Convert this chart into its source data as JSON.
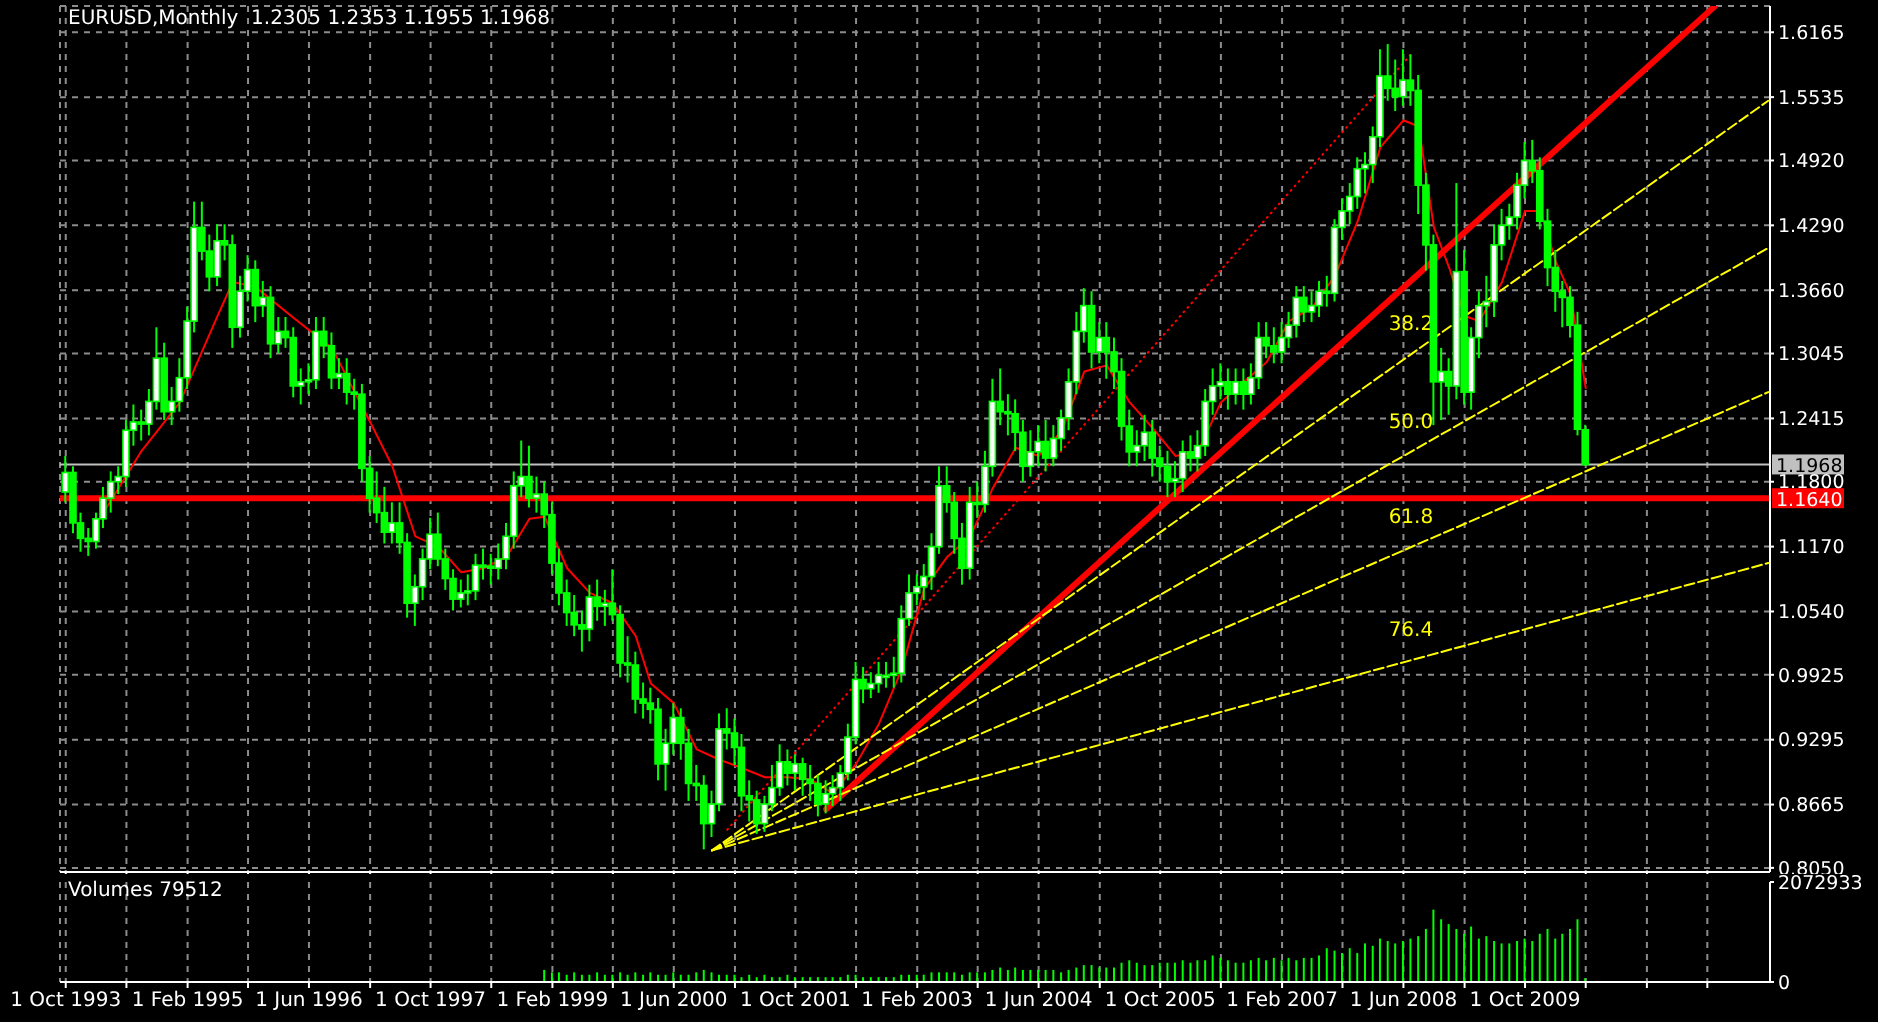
{
  "chart_data": [
    {
      "type": "candlestick",
      "title": "EURUSD,Monthly  1.2305 1.2353 1.1955 1.1968",
      "color": "#00ff00",
      "grid": true,
      "tick_labels": "y",
      "xlim": [
        "1993-09-08",
        "2012-06-08"
      ],
      "xticks": [
        {
          "value": "1993-10-01",
          "label": null
        },
        {
          "value": "1994-06-01",
          "label": null
        },
        {
          "value": "1995-02-01",
          "label": null
        },
        {
          "value": "1995-10-01",
          "label": null
        },
        {
          "value": "1996-06-01",
          "label": null
        },
        {
          "value": "1997-02-01",
          "label": null
        },
        {
          "value": "1997-10-01",
          "label": null
        },
        {
          "value": "1998-06-01",
          "label": null
        },
        {
          "value": "1999-02-01",
          "label": null
        },
        {
          "value": "1999-10-01",
          "label": null
        },
        {
          "value": "2000-06-01",
          "label": null
        },
        {
          "value": "2001-02-01",
          "label": null
        },
        {
          "value": "2001-10-01",
          "label": null
        },
        {
          "value": "2002-06-01",
          "label": null
        },
        {
          "value": "2003-02-01",
          "label": null
        },
        {
          "value": "2003-10-01",
          "label": null
        },
        {
          "value": "2004-06-01",
          "label": null
        },
        {
          "value": "2005-02-01",
          "label": null
        },
        {
          "value": "2005-10-01",
          "label": null
        },
        {
          "value": "2006-06-01",
          "label": null
        },
        {
          "value": "2007-02-01",
          "label": null
        },
        {
          "value": "2007-10-01",
          "label": null
        },
        {
          "value": "2008-06-01",
          "label": null
        },
        {
          "value": "2009-02-01",
          "label": null
        },
        {
          "value": "2009-10-01",
          "label": null
        },
        {
          "value": "2010-06-01",
          "label": null
        },
        {
          "value": "2011-02-01",
          "label": null
        },
        {
          "value": "2011-10-01",
          "label": null
        }
      ],
      "ylim": [
        0.801,
        1.642
      ],
      "yticks": [
        {
          "value": 0.805,
          "label": "0.8050"
        },
        0.8665,
        0.9295,
        0.9925,
        {
          "value": 1.054,
          "label": "1.0540"
        },
        {
          "value": 1.117,
          "label": "1.1170"
        },
        {
          "value": 1.18,
          "label": "1.1800"
        },
        1.2415,
        1.3045,
        {
          "value": 1.366,
          "label": "1.3660"
        },
        {
          "value": 1.429,
          "label": "1.4290"
        },
        {
          "value": 1.492,
          "label": "1.4920"
        },
        1.5535,
        1.6165
      ],
      "x": [
        "1993-10",
        "1993-11",
        "1993-12",
        "1994-01",
        "1994-02",
        "1994-03",
        "1994-04",
        "1994-05",
        "1994-06",
        "1994-07",
        "1994-08",
        "1994-09",
        "1994-10",
        "1994-11",
        "1994-12",
        "1995-01",
        "1995-02",
        "1995-03",
        "1995-04",
        "1995-05",
        "1995-06",
        "1995-07",
        "1995-08",
        "1995-09",
        "1995-10",
        "1995-11",
        "1995-12",
        "1996-01",
        "1996-02",
        "1996-03",
        "1996-04",
        "1996-05",
        "1996-06",
        "1996-07",
        "1996-08",
        "1996-09",
        "1996-10",
        "1996-11",
        "1996-12",
        "1997-01",
        "1997-02",
        "1997-03",
        "1997-04",
        "1997-05",
        "1997-06",
        "1997-07",
        "1997-08",
        "1997-09",
        "1997-10",
        "1997-11",
        "1997-12",
        "1998-01",
        "1998-02",
        "1998-03",
        "1998-04",
        "1998-05",
        "1998-06",
        "1998-07",
        "1998-08",
        "1998-09",
        "1998-10",
        "1998-11",
        "1998-12",
        "1999-01",
        "1999-02",
        "1999-03",
        "1999-04",
        "1999-05",
        "1999-06",
        "1999-07",
        "1999-08",
        "1999-09",
        "1999-10",
        "1999-11",
        "1999-12",
        "2000-01",
        "2000-02",
        "2000-03",
        "2000-04",
        "2000-05",
        "2000-06",
        "2000-07",
        "2000-08",
        "2000-09",
        "2000-10",
        "2000-11",
        "2000-12",
        "2001-01",
        "2001-02",
        "2001-03",
        "2001-04",
        "2001-05",
        "2001-06",
        "2001-07",
        "2001-08",
        "2001-09",
        "2001-10",
        "2001-11",
        "2001-12",
        "2002-01",
        "2002-02",
        "2002-03",
        "2002-04",
        "2002-05",
        "2002-06",
        "2002-07",
        "2002-08",
        "2002-09",
        "2002-10",
        "2002-11",
        "2002-12",
        "2003-01",
        "2003-02",
        "2003-03",
        "2003-04",
        "2003-05",
        "2003-06",
        "2003-07",
        "2003-08",
        "2003-09",
        "2003-10",
        "2003-11",
        "2003-12",
        "2004-01",
        "2004-02",
        "2004-03",
        "2004-04",
        "2004-05",
        "2004-06",
        "2004-07",
        "2004-08",
        "2004-09",
        "2004-10",
        "2004-11",
        "2004-12",
        "2005-01",
        "2005-02",
        "2005-03",
        "2005-04",
        "2005-05",
        "2005-06",
        "2005-07",
        "2005-08",
        "2005-09",
        "2005-10",
        "2005-11",
        "2005-12",
        "2006-01",
        "2006-02",
        "2006-03",
        "2006-04",
        "2006-05",
        "2006-06",
        "2006-07",
        "2006-08",
        "2006-09",
        "2006-10",
        "2006-11",
        "2006-12",
        "2007-01",
        "2007-02",
        "2007-03",
        "2007-04",
        "2007-05",
        "2007-06",
        "2007-07",
        "2007-08",
        "2007-09",
        "2007-10",
        "2007-11",
        "2007-12",
        "2008-01",
        "2008-02",
        "2008-03",
        "2008-04",
        "2008-05",
        "2008-06",
        "2008-07",
        "2008-08",
        "2008-09",
        "2008-10",
        "2008-11",
        "2008-12",
        "2009-01",
        "2009-02",
        "2009-03",
        "2009-04",
        "2009-05",
        "2009-06",
        "2009-07",
        "2009-08",
        "2009-09",
        "2009-10",
        "2009-11",
        "2009-12",
        "2010-01",
        "2010-02",
        "2010-03",
        "2010-04",
        "2010-05",
        "2010-06"
      ],
      "ohlc": [
        [
          1.17,
          1.205,
          1.16,
          1.189
        ],
        [
          1.189,
          1.195,
          1.13,
          1.14
        ],
        [
          1.14,
          1.15,
          1.112,
          1.125
        ],
        [
          1.125,
          1.135,
          1.108,
          1.122
        ],
        [
          1.122,
          1.15,
          1.115,
          1.144
        ],
        [
          1.144,
          1.175,
          1.135,
          1.164
        ],
        [
          1.164,
          1.19,
          1.15,
          1.18
        ],
        [
          1.18,
          1.195,
          1.168,
          1.185
        ],
        [
          1.185,
          1.24,
          1.175,
          1.23
        ],
        [
          1.23,
          1.255,
          1.215,
          1.238
        ],
        [
          1.238,
          1.25,
          1.22,
          1.236
        ],
        [
          1.236,
          1.27,
          1.225,
          1.258
        ],
        [
          1.258,
          1.33,
          1.25,
          1.3
        ],
        [
          1.3,
          1.315,
          1.24,
          1.248
        ],
        [
          1.248,
          1.272,
          1.235,
          1.258
        ],
        [
          1.258,
          1.3,
          1.248,
          1.281
        ],
        [
          1.281,
          1.35,
          1.27,
          1.336
        ],
        [
          1.336,
          1.452,
          1.325,
          1.427
        ],
        [
          1.427,
          1.452,
          1.395,
          1.404
        ],
        [
          1.404,
          1.42,
          1.365,
          1.379
        ],
        [
          1.379,
          1.43,
          1.37,
          1.414
        ],
        [
          1.414,
          1.43,
          1.395,
          1.41
        ],
        [
          1.41,
          1.42,
          1.31,
          1.33
        ],
        [
          1.33,
          1.38,
          1.32,
          1.365
        ],
        [
          1.365,
          1.4,
          1.355,
          1.386
        ],
        [
          1.386,
          1.395,
          1.335,
          1.351
        ],
        [
          1.351,
          1.375,
          1.34,
          1.359
        ],
        [
          1.359,
          1.37,
          1.3,
          1.314
        ],
        [
          1.314,
          1.34,
          1.305,
          1.326
        ],
        [
          1.326,
          1.34,
          1.31,
          1.32
        ],
        [
          1.32,
          1.33,
          1.262,
          1.273
        ],
        [
          1.273,
          1.29,
          1.255,
          1.277
        ],
        [
          1.277,
          1.295,
          1.265,
          1.279
        ],
        [
          1.279,
          1.34,
          1.27,
          1.326
        ],
        [
          1.326,
          1.34,
          1.3,
          1.312
        ],
        [
          1.312,
          1.325,
          1.27,
          1.281
        ],
        [
          1.281,
          1.3,
          1.27,
          1.285
        ],
        [
          1.285,
          1.3,
          1.255,
          1.267
        ],
        [
          1.267,
          1.28,
          1.25,
          1.265
        ],
        [
          1.265,
          1.275,
          1.18,
          1.193
        ],
        [
          1.193,
          1.205,
          1.15,
          1.164
        ],
        [
          1.164,
          1.19,
          1.14,
          1.15
        ],
        [
          1.15,
          1.175,
          1.12,
          1.131
        ],
        [
          1.131,
          1.16,
          1.12,
          1.14
        ],
        [
          1.14,
          1.16,
          1.11,
          1.121
        ],
        [
          1.121,
          1.13,
          1.048,
          1.062
        ],
        [
          1.062,
          1.09,
          1.04,
          1.078
        ],
        [
          1.078,
          1.115,
          1.065,
          1.105
        ],
        [
          1.105,
          1.145,
          1.095,
          1.129
        ],
        [
          1.129,
          1.15,
          1.098,
          1.105
        ],
        [
          1.105,
          1.115,
          1.075,
          1.086
        ],
        [
          1.086,
          1.095,
          1.055,
          1.066
        ],
        [
          1.066,
          1.085,
          1.058,
          1.072
        ],
        [
          1.072,
          1.09,
          1.06,
          1.074
        ],
        [
          1.074,
          1.11,
          1.065,
          1.099
        ],
        [
          1.099,
          1.115,
          1.085,
          1.098
        ],
        [
          1.098,
          1.11,
          1.08,
          1.096
        ],
        [
          1.096,
          1.12,
          1.085,
          1.105
        ],
        [
          1.105,
          1.14,
          1.095,
          1.127
        ],
        [
          1.127,
          1.19,
          1.115,
          1.176
        ],
        [
          1.176,
          1.22,
          1.165,
          1.185
        ],
        [
          1.185,
          1.215,
          1.155,
          1.164
        ],
        [
          1.164,
          1.185,
          1.15,
          1.168
        ],
        [
          1.168,
          1.18,
          1.135,
          1.148
        ],
        [
          1.148,
          1.16,
          1.09,
          1.101
        ],
        [
          1.101,
          1.115,
          1.06,
          1.072
        ],
        [
          1.072,
          1.085,
          1.04,
          1.053
        ],
        [
          1.053,
          1.07,
          1.03,
          1.041
        ],
        [
          1.041,
          1.055,
          1.015,
          1.037
        ],
        [
          1.037,
          1.08,
          1.025,
          1.068
        ],
        [
          1.068,
          1.085,
          1.045,
          1.059
        ],
        [
          1.059,
          1.075,
          1.04,
          1.062
        ],
        [
          1.062,
          1.095,
          1.045,
          1.051
        ],
        [
          1.051,
          1.06,
          0.99,
          1.004
        ],
        [
          1.004,
          1.03,
          0.985,
          1.002
        ],
        [
          1.002,
          1.015,
          0.955,
          0.969
        ],
        [
          0.969,
          0.985,
          0.95,
          0.965
        ],
        [
          0.965,
          0.98,
          0.945,
          0.959
        ],
        [
          0.959,
          0.97,
          0.89,
          0.906
        ],
        [
          0.906,
          0.94,
          0.88,
          0.926
        ],
        [
          0.926,
          0.965,
          0.915,
          0.951
        ],
        [
          0.951,
          0.96,
          0.91,
          0.926
        ],
        [
          0.926,
          0.94,
          0.87,
          0.887
        ],
        [
          0.887,
          0.905,
          0.87,
          0.885
        ],
        [
          0.885,
          0.895,
          0.823,
          0.848
        ],
        [
          0.848,
          0.88,
          0.835,
          0.867
        ],
        [
          0.867,
          0.955,
          0.86,
          0.94
        ],
        [
          0.94,
          0.96,
          0.92,
          0.936
        ],
        [
          0.936,
          0.95,
          0.905,
          0.922
        ],
        [
          0.922,
          0.935,
          0.86,
          0.875
        ],
        [
          0.875,
          0.89,
          0.85,
          0.871
        ],
        [
          0.871,
          0.88,
          0.838,
          0.848
        ],
        [
          0.848,
          0.875,
          0.84,
          0.867
        ],
        [
          0.867,
          0.905,
          0.86,
          0.883
        ],
        [
          0.883,
          0.925,
          0.875,
          0.908
        ],
        [
          0.908,
          0.92,
          0.885,
          0.897
        ],
        [
          0.897,
          0.915,
          0.88,
          0.906
        ],
        [
          0.906,
          0.912,
          0.875,
          0.891
        ],
        [
          0.891,
          0.905,
          0.87,
          0.887
        ],
        [
          0.887,
          0.895,
          0.855,
          0.867
        ],
        [
          0.867,
          0.89,
          0.858,
          0.877
        ],
        [
          0.877,
          0.895,
          0.865,
          0.883
        ],
        [
          0.883,
          0.905,
          0.87,
          0.897
        ],
        [
          0.897,
          0.945,
          0.89,
          0.932
        ],
        [
          0.932,
          1.005,
          0.925,
          0.988
        ],
        [
          0.988,
          1.0,
          0.965,
          0.979
        ],
        [
          0.979,
          0.995,
          0.97,
          0.984
        ],
        [
          0.984,
          1.005,
          0.975,
          0.992
        ],
        [
          0.992,
          1.005,
          0.98,
          0.992
        ],
        [
          0.992,
          1.01,
          0.98,
          0.994
        ],
        [
          0.994,
          1.06,
          0.985,
          1.047
        ],
        [
          1.047,
          1.09,
          1.04,
          1.072
        ],
        [
          1.072,
          1.09,
          1.06,
          1.078
        ],
        [
          1.078,
          1.1,
          1.065,
          1.088
        ],
        [
          1.088,
          1.13,
          1.075,
          1.117
        ],
        [
          1.117,
          1.195,
          1.11,
          1.176
        ],
        [
          1.176,
          1.195,
          1.15,
          1.16
        ],
        [
          1.16,
          1.17,
          1.11,
          1.125
        ],
        [
          1.125,
          1.14,
          1.08,
          1.096
        ],
        [
          1.096,
          1.175,
          1.085,
          1.16
        ],
        [
          1.16,
          1.18,
          1.145,
          1.158
        ],
        [
          1.158,
          1.21,
          1.15,
          1.195
        ],
        [
          1.195,
          1.28,
          1.185,
          1.258
        ],
        [
          1.258,
          1.29,
          1.235,
          1.248
        ],
        [
          1.248,
          1.265,
          1.225,
          1.246
        ],
        [
          1.246,
          1.26,
          1.21,
          1.228
        ],
        [
          1.228,
          1.24,
          1.18,
          1.195
        ],
        [
          1.195,
          1.23,
          1.185,
          1.209
        ],
        [
          1.209,
          1.235,
          1.195,
          1.219
        ],
        [
          1.219,
          1.24,
          1.19,
          1.203
        ],
        [
          1.203,
          1.235,
          1.195,
          1.222
        ],
        [
          1.222,
          1.25,
          1.21,
          1.242
        ],
        [
          1.242,
          1.29,
          1.23,
          1.277
        ],
        [
          1.277,
          1.345,
          1.265,
          1.326
        ],
        [
          1.326,
          1.368,
          1.315,
          1.351
        ],
        [
          1.351,
          1.365,
          1.29,
          1.306
        ],
        [
          1.306,
          1.335,
          1.295,
          1.32
        ],
        [
          1.32,
          1.335,
          1.28,
          1.306
        ],
        [
          1.306,
          1.32,
          1.27,
          1.287
        ],
        [
          1.287,
          1.3,
          1.22,
          1.234
        ],
        [
          1.234,
          1.25,
          1.195,
          1.209
        ],
        [
          1.209,
          1.23,
          1.195,
          1.215
        ],
        [
          1.215,
          1.245,
          1.2,
          1.228
        ],
        [
          1.228,
          1.24,
          1.185,
          1.203
        ],
        [
          1.203,
          1.215,
          1.18,
          1.195
        ],
        [
          1.195,
          1.21,
          1.165,
          1.18
        ],
        [
          1.18,
          1.2,
          1.165,
          1.183
        ],
        [
          1.183,
          1.22,
          1.17,
          1.209
        ],
        [
          1.209,
          1.225,
          1.19,
          1.203
        ],
        [
          1.203,
          1.23,
          1.19,
          1.215
        ],
        [
          1.215,
          1.27,
          1.205,
          1.258
        ],
        [
          1.258,
          1.29,
          1.245,
          1.273
        ],
        [
          1.273,
          1.295,
          1.26,
          1.277
        ],
        [
          1.277,
          1.29,
          1.25,
          1.265
        ],
        [
          1.265,
          1.29,
          1.255,
          1.277
        ],
        [
          1.277,
          1.29,
          1.25,
          1.265
        ],
        [
          1.265,
          1.295,
          1.255,
          1.281
        ],
        [
          1.281,
          1.335,
          1.27,
          1.32
        ],
        [
          1.32,
          1.335,
          1.3,
          1.312
        ],
        [
          1.312,
          1.33,
          1.295,
          1.306
        ],
        [
          1.306,
          1.335,
          1.295,
          1.32
        ],
        [
          1.32,
          1.345,
          1.31,
          1.332
        ],
        [
          1.332,
          1.37,
          1.32,
          1.359
        ],
        [
          1.359,
          1.37,
          1.335,
          1.345
        ],
        [
          1.345,
          1.365,
          1.335,
          1.351
        ],
        [
          1.351,
          1.375,
          1.34,
          1.365
        ],
        [
          1.365,
          1.38,
          1.35,
          1.363
        ],
        [
          1.363,
          1.435,
          1.355,
          1.427
        ],
        [
          1.427,
          1.455,
          1.415,
          1.443
        ],
        [
          1.443,
          1.47,
          1.43,
          1.457
        ],
        [
          1.457,
          1.495,
          1.445,
          1.484
        ],
        [
          1.484,
          1.5,
          1.46,
          1.488
        ],
        [
          1.488,
          1.525,
          1.47,
          1.515
        ],
        [
          1.515,
          1.6,
          1.505,
          1.574
        ],
        [
          1.574,
          1.605,
          1.55,
          1.562
        ],
        [
          1.562,
          1.59,
          1.54,
          1.554
        ],
        [
          1.554,
          1.6,
          1.545,
          1.57
        ],
        [
          1.57,
          1.595,
          1.545,
          1.56
        ],
        [
          1.56,
          1.575,
          1.44,
          1.468
        ],
        [
          1.468,
          1.48,
          1.385,
          1.41
        ],
        [
          1.41,
          1.42,
          1.235,
          1.277
        ],
        [
          1.277,
          1.31,
          1.24,
          1.287
        ],
        [
          1.287,
          1.3,
          1.245,
          1.273
        ],
        [
          1.273,
          1.47,
          1.26,
          1.384
        ],
        [
          1.384,
          1.405,
          1.255,
          1.267
        ],
        [
          1.267,
          1.33,
          1.25,
          1.32
        ],
        [
          1.32,
          1.365,
          1.3,
          1.351
        ],
        [
          1.351,
          1.38,
          1.33,
          1.355
        ],
        [
          1.355,
          1.43,
          1.34,
          1.41
        ],
        [
          1.41,
          1.445,
          1.395,
          1.429
        ],
        [
          1.429,
          1.45,
          1.415,
          1.437
        ],
        [
          1.437,
          1.48,
          1.425,
          1.468
        ],
        [
          1.468,
          1.51,
          1.455,
          1.492
        ],
        [
          1.492,
          1.512,
          1.47,
          1.482
        ],
        [
          1.482,
          1.495,
          1.425,
          1.433
        ],
        [
          1.433,
          1.445,
          1.37,
          1.388
        ],
        [
          1.388,
          1.405,
          1.345,
          1.365
        ],
        [
          1.365,
          1.375,
          1.33,
          1.359
        ],
        [
          1.359,
          1.37,
          1.32,
          1.332
        ],
        [
          1.332,
          1.345,
          1.225,
          1.231
        ],
        [
          1.2305,
          1.2353,
          1.1955,
          1.1968
        ]
      ],
      "series": [
        {
          "type": "line",
          "color": "#ff0000",
          "line_style": "solid",
          "x": [
            "1994-03",
            "1994-08",
            "1995-01",
            "1995-06",
            "1995-08",
            "1995-11",
            "1996-04",
            "1996-09",
            "1996-12",
            "1997-02",
            "1997-05",
            "1997-08",
            "1997-11",
            "1998-02",
            "1998-05",
            "1998-08",
            "1998-11",
            "1999-01",
            "1999-04",
            "1999-07",
            "1999-10",
            "2000-01",
            "2000-03",
            "2000-06",
            "2000-09",
            "2000-12",
            "2001-03",
            "2001-06",
            "2001-09",
            "2001-12",
            "2002-03",
            "2002-06",
            "2002-09",
            "2002-12",
            "2003-03",
            "2003-06",
            "2003-09",
            "2003-12",
            "2004-03",
            "2004-06",
            "2004-09",
            "2004-12",
            "2005-03",
            "2005-06",
            "2005-09",
            "2005-12",
            "2006-03",
            "2006-06",
            "2006-09",
            "2006-12",
            "2007-03",
            "2007-06",
            "2007-09",
            "2007-12",
            "2008-03",
            "2008-06",
            "2008-08",
            "2008-10",
            "2008-12",
            "2009-02",
            "2009-04",
            "2009-07",
            "2009-10",
            "2009-12",
            "2010-02",
            "2010-04",
            "2010-06"
          ],
          "values": [
            1.15,
            1.21,
            1.257,
            1.341,
            1.374,
            1.369,
            1.339,
            1.31,
            1.267,
            1.238,
            1.195,
            1.127,
            1.117,
            1.092,
            1.096,
            1.107,
            1.144,
            1.146,
            1.096,
            1.072,
            1.062,
            1.03,
            0.984,
            0.965,
            0.92,
            0.91,
            0.902,
            0.893,
            0.893,
            0.891,
            0.877,
            0.906,
            0.945,
            0.998,
            1.076,
            1.107,
            1.127,
            1.174,
            1.213,
            1.205,
            1.229,
            1.287,
            1.293,
            1.257,
            1.232,
            1.205,
            1.209,
            1.257,
            1.277,
            1.296,
            1.336,
            1.349,
            1.38,
            1.433,
            1.505,
            1.531,
            1.525,
            1.427,
            1.388,
            1.341,
            1.336,
            1.374,
            1.443,
            1.443,
            1.394,
            1.362,
            1.271
          ]
        },
        {
          "type": "line",
          "color": "#ff0000",
          "line_style": "solid",
          "x": [
            "2002-02",
            "2011-11"
          ],
          "values": [
            0.862,
            1.642
          ]
        },
        {
          "type": "line",
          "color": "#ff0000",
          "line_style": "dotted",
          "x": [
            "2001-01",
            "2008-07"
          ],
          "values": [
            0.842,
            1.595
          ]
        },
        {
          "type": "line",
          "name": "38.2",
          "color": "#ffff00",
          "line_style": "dashed",
          "x": [
            "2000-11",
            "2012-06"
          ],
          "values": [
            0.822,
            1.55
          ]
        },
        {
          "type": "line",
          "name": "50.0",
          "color": "#ffff00",
          "line_style": "dashed",
          "x": [
            "2000-11",
            "2012-06"
          ],
          "values": [
            0.822,
            1.407
          ]
        },
        {
          "type": "line",
          "name": "61.8",
          "color": "#ffff00",
          "line_style": "dashed",
          "x": [
            "2000-11",
            "2012-06"
          ],
          "values": [
            0.822,
            1.267
          ]
        },
        {
          "type": "line",
          "name": "76.4",
          "color": "#ffff00",
          "line_style": "dashed",
          "x": [
            "2000-11",
            "2012-06"
          ],
          "values": [
            0.822,
            1.101
          ]
        }
      ],
      "ref_lines": [
        {
          "axis": "y",
          "value": 1.1968,
          "label": "1.1968",
          "color": "#c0c0c0"
        },
        {
          "axis": "y",
          "value": 1.164,
          "label": "1.1640",
          "color": "#ff0000"
        }
      ]
    },
    {
      "type": "bar",
      "title": "Volumes 79512",
      "color": "#00ff00",
      "grid": "x",
      "xlim": [
        "1993-09-08",
        "2012-06-08"
      ],
      "xticks": [
        {
          "value": "1993-10-01",
          "label": "1 Oct 1993"
        },
        {
          "value": "1994-06-01",
          "label": null
        },
        {
          "value": "1995-02-01",
          "label": "1 Feb 1995"
        },
        {
          "value": "1995-10-01",
          "label": null
        },
        {
          "value": "1996-06-01",
          "label": "1 Jun 1996"
        },
        {
          "value": "1997-02-01",
          "label": null
        },
        {
          "value": "1997-10-01",
          "label": "1 Oct 1997"
        },
        {
          "value": "1998-06-01",
          "label": null
        },
        {
          "value": "1999-02-01",
          "label": "1 Feb 1999"
        },
        {
          "value": "1999-10-01",
          "label": null
        },
        {
          "value": "2000-06-01",
          "label": "1 Jun 2000"
        },
        {
          "value": "2001-02-01",
          "label": null
        },
        {
          "value": "2001-10-01",
          "label": "1 Oct 2001"
        },
        {
          "value": "2002-06-01",
          "label": null
        },
        {
          "value": "2003-02-01",
          "label": "1 Feb 2003"
        },
        {
          "value": "2003-10-01",
          "label": null
        },
        {
          "value": "2004-06-01",
          "label": "1 Jun 2004"
        },
        {
          "value": "2005-02-01",
          "label": null
        },
        {
          "value": "2005-10-01",
          "label": "1 Oct 2005"
        },
        {
          "value": "2006-06-01",
          "label": null
        },
        {
          "value": "2007-02-01",
          "label": "1 Feb 2007"
        },
        {
          "value": "2007-10-01",
          "label": null
        },
        {
          "value": "2008-06-01",
          "label": "1 Jun 2008"
        },
        {
          "value": "2009-02-01",
          "label": null
        },
        {
          "value": "2009-10-01",
          "label": "1 Oct 2009"
        },
        {
          "value": "2010-06-01",
          "label": null
        },
        {
          "value": "2011-02-01",
          "label": null
        },
        {
          "value": "2011-10-01",
          "label": null
        }
      ],
      "ylim": [
        0,
        2072933
      ],
      "yticks": [
        0,
        2072933
      ],
      "x": [
        "1999-01",
        "1999-02",
        "1999-03",
        "1999-04",
        "1999-05",
        "1999-06",
        "1999-07",
        "1999-08",
        "1999-09",
        "1999-10",
        "1999-11",
        "1999-12",
        "2000-01",
        "2000-02",
        "2000-03",
        "2000-04",
        "2000-05",
        "2000-06",
        "2000-07",
        "2000-08",
        "2000-09",
        "2000-10",
        "2000-11",
        "2000-12",
        "2001-01",
        "2001-02",
        "2001-03",
        "2001-04",
        "2001-05",
        "2001-06",
        "2001-07",
        "2001-08",
        "2001-09",
        "2001-10",
        "2001-11",
        "2001-12",
        "2002-01",
        "2002-02",
        "2002-03",
        "2002-04",
        "2002-05",
        "2002-06",
        "2002-07",
        "2002-08",
        "2002-09",
        "2002-10",
        "2002-11",
        "2002-12",
        "2003-01",
        "2003-02",
        "2003-03",
        "2003-04",
        "2003-05",
        "2003-06",
        "2003-07",
        "2003-08",
        "2003-09",
        "2003-10",
        "2003-11",
        "2003-12",
        "2004-01",
        "2004-02",
        "2004-03",
        "2004-04",
        "2004-05",
        "2004-06",
        "2004-07",
        "2004-08",
        "2004-09",
        "2004-10",
        "2004-11",
        "2004-12",
        "2005-01",
        "2005-02",
        "2005-03",
        "2005-04",
        "2005-05",
        "2005-06",
        "2005-07",
        "2005-08",
        "2005-09",
        "2005-10",
        "2005-11",
        "2005-12",
        "2006-01",
        "2006-02",
        "2006-03",
        "2006-04",
        "2006-05",
        "2006-06",
        "2006-07",
        "2006-08",
        "2006-09",
        "2006-10",
        "2006-11",
        "2006-12",
        "2007-01",
        "2007-02",
        "2007-03",
        "2007-04",
        "2007-05",
        "2007-06",
        "2007-07",
        "2007-08",
        "2007-09",
        "2007-10",
        "2007-11",
        "2007-12",
        "2008-01",
        "2008-02",
        "2008-03",
        "2008-04",
        "2008-05",
        "2008-06",
        "2008-07",
        "2008-08",
        "2008-09",
        "2008-10",
        "2008-11",
        "2008-12",
        "2009-01",
        "2009-02",
        "2009-03",
        "2009-04",
        "2009-05",
        "2009-06",
        "2009-07",
        "2009-08",
        "2009-09",
        "2009-10",
        "2009-11",
        "2009-12",
        "2010-01",
        "2010-02",
        "2010-03",
        "2010-04",
        "2010-05",
        "2010-06"
      ],
      "values": [
        250000,
        200000,
        200000,
        150000,
        200000,
        150000,
        150000,
        200000,
        150000,
        150000,
        200000,
        150000,
        200000,
        150000,
        200000,
        150000,
        150000,
        200000,
        150000,
        150000,
        200000,
        250000,
        200000,
        150000,
        150000,
        150000,
        100000,
        150000,
        100000,
        150000,
        100000,
        100000,
        150000,
        100000,
        100000,
        100000,
        100000,
        100000,
        100000,
        100000,
        150000,
        150000,
        100000,
        100000,
        100000,
        100000,
        100000,
        150000,
        150000,
        150000,
        150000,
        200000,
        200000,
        200000,
        200000,
        150000,
        200000,
        200000,
        200000,
        250000,
        300000,
        250000,
        300000,
        250000,
        250000,
        250000,
        250000,
        250000,
        200000,
        250000,
        300000,
        350000,
        350000,
        300000,
        300000,
        300000,
        400000,
        450000,
        400000,
        350000,
        350000,
        400000,
        400000,
        400000,
        450000,
        400000,
        450000,
        450000,
        550000,
        500000,
        450000,
        400000,
        400000,
        450000,
        500000,
        450000,
        500000,
        450000,
        500000,
        450000,
        500000,
        500000,
        550000,
        700000,
        650000,
        600000,
        700000,
        600000,
        800000,
        750000,
        900000,
        850000,
        800000,
        850000,
        900000,
        950000,
        1100000,
        1500000,
        1300000,
        1200000,
        1100000,
        1000000,
        1150000,
        900000,
        950000,
        850000,
        800000,
        800000,
        850000,
        900000,
        850000,
        1000000,
        1100000,
        900000,
        1000000,
        1100000,
        1300000,
        79512
      ]
    }
  ]
}
